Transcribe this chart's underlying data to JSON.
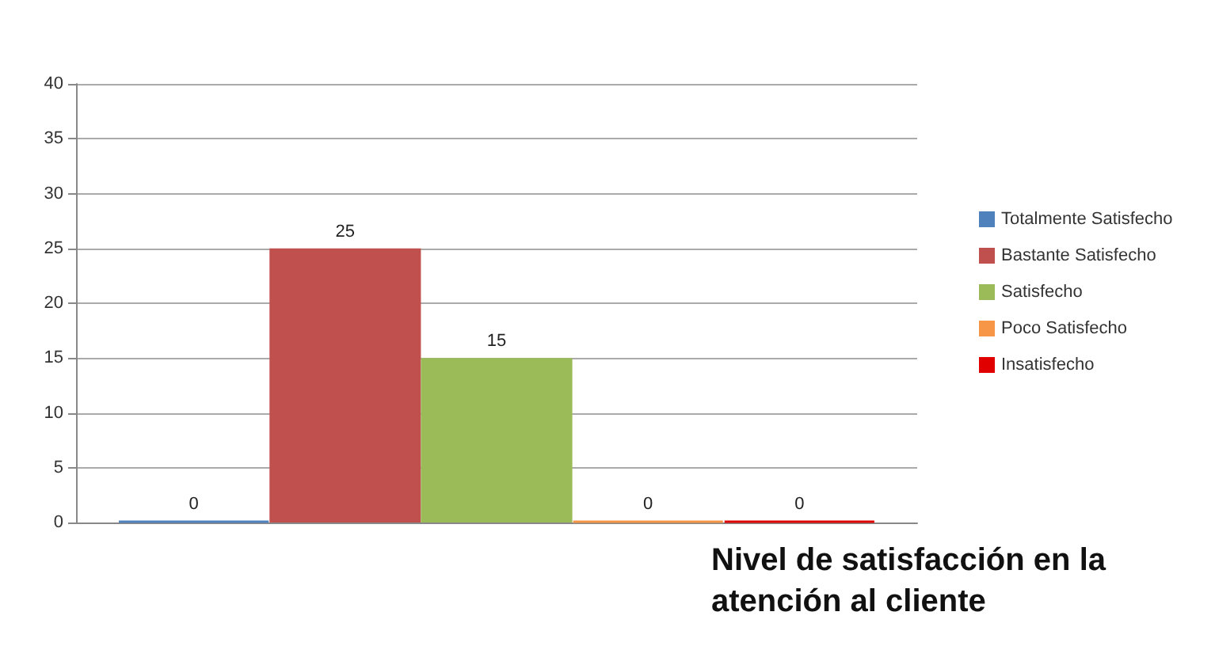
{
  "chart_data": {
    "type": "bar",
    "title": "Nivel de satisfacción en la atención al cliente",
    "categories": [
      null
    ],
    "series": [
      {
        "name": "Totalmente Satisfecho",
        "color": "#4f81bd",
        "values": [
          0
        ]
      },
      {
        "name": "Bastante Satisfecho",
        "color": "#c0504d",
        "values": [
          25
        ]
      },
      {
        "name": "Satisfecho",
        "color": "#9bbb59",
        "values": [
          15
        ]
      },
      {
        "name": "Poco Satisfecho",
        "color": "#f79646",
        "values": [
          0
        ]
      },
      {
        "name": "Insatisfecho",
        "color": "#e00000",
        "values": [
          0
        ]
      }
    ],
    "ylim": [
      0,
      40
    ],
    "yticks": [
      0,
      5,
      10,
      15,
      20,
      25,
      30,
      35,
      40
    ],
    "grid": "y",
    "legend": "right",
    "data_labels": true
  }
}
